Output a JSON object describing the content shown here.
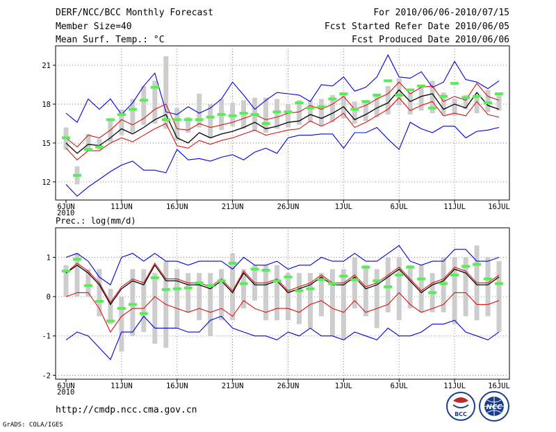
{
  "header": {
    "title": "DERF/NCC/BCC Monthly Forecast",
    "member_size": "Member Size=40",
    "variable": "Mean Surf. Temp.: °C",
    "forecast_range": "For 2010/06/06-2010/07/15",
    "started_refer": "Fcst Started Refer Date 2010/06/05",
    "produced": "Fcst Produced Date 2010/06/06"
  },
  "x_axis": {
    "year": "2010",
    "ticks": [
      {
        "index": 0,
        "label": "6JUN"
      },
      {
        "index": 5,
        "label": "11JUN"
      },
      {
        "index": 10,
        "label": "16JUN"
      },
      {
        "index": 15,
        "label": "21JUN"
      },
      {
        "index": 20,
        "label": "26JUN"
      },
      {
        "index": 25,
        "label": "1JUL"
      },
      {
        "index": 30,
        "label": "6JUL"
      },
      {
        "index": 35,
        "label": "11JUL"
      },
      {
        "index": 39,
        "label": "16JUL"
      }
    ]
  },
  "footer": {
    "url": "http://cmdp.ncc.cma.gov.cn",
    "credit": "GrADS: COLA/IGES",
    "logo_bcc": "BCC",
    "logo_ncc": "NCC"
  },
  "colors": {
    "box": "#cdcdcd",
    "mean": "#000000",
    "sd": "#dd1111",
    "extreme": "#0000dd",
    "obs": "#55ee55"
  },
  "chart_data": [
    {
      "type": "box-ensemble",
      "title": "Mean Surf. Temp.: °C",
      "ylim": [
        10.6,
        22.5
      ],
      "yticks": [
        12,
        15,
        18,
        21
      ],
      "n_days": 39,
      "box_low": [
        14.5,
        11.8,
        14.4,
        14.5,
        15.1,
        15.6,
        15.8,
        16.4,
        16.5,
        16.1,
        15.2,
        15.8,
        16.2,
        15.4,
        16.0,
        16.3,
        16.1,
        15.9,
        15.8,
        16.1,
        16.2,
        16.4,
        16.6,
        16.3,
        16.6,
        16.9,
        16.5,
        16.7,
        17.0,
        17.2,
        17.9,
        17.2,
        17.5,
        17.3,
        17.2,
        17.1,
        17.6,
        17.3,
        17.4,
        17.5
      ],
      "box_high": [
        16.2,
        13.2,
        15.7,
        15.3,
        16.8,
        17.6,
        18.4,
        19.4,
        19.8,
        21.7,
        17.7,
        17.0,
        18.8,
        18.0,
        18.4,
        18.1,
        18.3,
        18.5,
        18.5,
        18.4,
        18.0,
        18.3,
        18.3,
        18.4,
        18.7,
        18.8,
        18.2,
        18.3,
        18.6,
        19.4,
        20.0,
        18.9,
        19.5,
        19.8,
        18.9,
        18.4,
        18.7,
        18.6,
        19.1,
        18.7
      ],
      "mean": [
        15.0,
        14.2,
        14.9,
        14.8,
        15.4,
        16.1,
        15.7,
        16.2,
        16.8,
        17.2,
        15.4,
        15.0,
        15.8,
        15.4,
        15.7,
        15.9,
        16.2,
        16.6,
        16.1,
        16.3,
        16.6,
        16.7,
        17.2,
        16.9,
        17.3,
        17.8,
        16.8,
        17.2,
        17.7,
        18.1,
        19.1,
        18.2,
        18.6,
        18.8,
        17.6,
        18.0,
        17.7,
        18.9,
        17.9,
        17.6
      ],
      "sd_high": [
        15.4,
        14.7,
        15.6,
        15.4,
        16.0,
        16.8,
        16.4,
        16.9,
        17.6,
        18.0,
        16.1,
        16.0,
        16.5,
        16.2,
        16.4,
        16.6,
        16.9,
        17.2,
        16.8,
        17.0,
        17.3,
        17.4,
        17.9,
        17.6,
        18.0,
        18.6,
        17.6,
        17.9,
        18.4,
        18.8,
        19.7,
        18.8,
        19.3,
        19.4,
        18.2,
        18.6,
        18.3,
        19.6,
        18.6,
        18.3
      ],
      "sd_low": [
        14.6,
        13.7,
        14.4,
        14.4,
        15.0,
        15.4,
        15.1,
        15.6,
        16.1,
        16.5,
        14.8,
        14.6,
        15.2,
        14.9,
        15.2,
        15.4,
        15.7,
        16.0,
        15.6,
        15.8,
        16.0,
        16.1,
        16.7,
        16.3,
        16.7,
        17.3,
        16.2,
        16.6,
        17.1,
        17.6,
        18.5,
        17.5,
        17.9,
        18.2,
        17.1,
        17.3,
        17.1,
        18.2,
        17.2,
        17.0
      ],
      "max": [
        17.3,
        16.6,
        18.4,
        17.6,
        18.4,
        17.2,
        18.1,
        19.4,
        20.4,
        17.4,
        17.2,
        17.8,
        17.3,
        17.7,
        18.4,
        19.7,
        18.7,
        17.6,
        18.3,
        18.9,
        18.8,
        18.7,
        18.2,
        19.5,
        19.4,
        20.1,
        19.0,
        19.3,
        20.1,
        21.8,
        20.1,
        20.0,
        20.5,
        19.3,
        19.7,
        21.3,
        19.9,
        19.7,
        19.2,
        19.8
      ],
      "min": [
        11.8,
        10.9,
        11.6,
        12.2,
        12.8,
        13.3,
        13.6,
        12.9,
        12.9,
        12.7,
        14.5,
        13.7,
        13.8,
        13.6,
        13.9,
        14.1,
        13.7,
        14.3,
        14.6,
        14.2,
        15.4,
        15.6,
        15.6,
        15.7,
        15.7,
        14.6,
        15.8,
        15.8,
        16.2,
        15.3,
        14.5,
        16.6,
        16.1,
        15.8,
        16.3,
        16.3,
        15.4,
        15.9,
        16.0,
        16.2
      ],
      "obs": [
        15.4,
        12.5,
        14.5,
        14.7,
        16.8,
        17.2,
        17.6,
        18.3,
        19.3,
        16.8,
        16.8,
        16.8,
        16.8,
        17.0,
        17.2,
        17.1,
        17.3,
        17.2,
        16.5,
        17.4,
        17.4,
        18.1,
        17.7,
        17.8,
        18.4,
        18.8,
        17.6,
        18.2,
        18.7,
        19.8,
        18.7,
        19.1,
        19.4,
        17.7,
        18.6,
        19.6,
        18.5,
        18.6,
        18.1,
        18.8
      ]
    },
    {
      "type": "box-ensemble",
      "title": "Prec.: log(mm/d)",
      "ylim": [
        -2.1,
        1.75
      ],
      "yticks": [
        -2,
        -1,
        0,
        1
      ],
      "n_days": 39,
      "box_low": [
        0.0,
        0.0,
        0.0,
        -0.5,
        -0.7,
        -1.4,
        -1.0,
        -0.9,
        -1.2,
        -1.3,
        -0.8,
        -0.4,
        -0.6,
        -1.0,
        -0.6,
        -0.6,
        -0.3,
        -0.1,
        -0.6,
        -0.6,
        -0.6,
        -0.7,
        -0.8,
        -0.5,
        -1.0,
        -1.1,
        -0.3,
        -0.5,
        -0.8,
        -0.4,
        -0.6,
        -0.3,
        -0.4,
        -0.4,
        -0.4,
        -0.7,
        -0.5,
        -0.6,
        -0.5,
        -0.9
      ],
      "box_high": [
        0.8,
        1.1,
        0.7,
        0.7,
        0.2,
        0.0,
        0.7,
        0.7,
        0.6,
        0.9,
        0.7,
        0.6,
        0.6,
        0.6,
        0.7,
        1.1,
        0.7,
        0.8,
        0.8,
        0.8,
        0.6,
        0.6,
        0.6,
        0.6,
        0.7,
        0.7,
        1.0,
        0.8,
        0.7,
        1.0,
        1.0,
        0.8,
        0.8,
        0.6,
        1.0,
        1.0,
        1.0,
        1.3,
        1.0,
        0.9
      ],
      "mean": [
        0.6,
        0.8,
        0.6,
        0.3,
        -0.2,
        0.2,
        0.4,
        0.3,
        0.8,
        0.4,
        0.4,
        0.3,
        0.3,
        0.2,
        0.4,
        0.1,
        0.6,
        0.3,
        0.3,
        0.4,
        0.1,
        0.2,
        0.3,
        0.5,
        0.3,
        0.3,
        0.5,
        0.2,
        0.3,
        0.5,
        0.7,
        0.4,
        0.1,
        0.3,
        0.4,
        0.7,
        0.6,
        0.3,
        0.3,
        0.5
      ],
      "sd_high": [
        0.6,
        0.85,
        0.65,
        0.35,
        -0.15,
        0.25,
        0.45,
        0.35,
        0.85,
        0.45,
        0.45,
        0.35,
        0.35,
        0.25,
        0.45,
        0.15,
        0.65,
        0.35,
        0.35,
        0.45,
        0.15,
        0.25,
        0.35,
        0.55,
        0.35,
        0.35,
        0.55,
        0.25,
        0.35,
        0.55,
        0.75,
        0.45,
        0.15,
        0.35,
        0.45,
        0.75,
        0.65,
        0.35,
        0.35,
        0.55
      ],
      "sd_low": [
        0.0,
        0.1,
        0.1,
        -0.3,
        -0.9,
        -0.5,
        -0.3,
        -0.3,
        0.0,
        -0.2,
        -0.3,
        -0.4,
        -0.3,
        -0.4,
        -0.3,
        -0.5,
        -0.1,
        -0.3,
        -0.4,
        -0.3,
        -0.3,
        -0.4,
        -0.2,
        -0.1,
        -0.3,
        -0.4,
        -0.1,
        -0.4,
        -0.3,
        -0.2,
        0.1,
        -0.2,
        -0.4,
        -0.3,
        -0.2,
        0.1,
        0.1,
        -0.2,
        -0.2,
        -0.1
      ],
      "max": [
        1.0,
        1.1,
        0.9,
        0.5,
        0.3,
        1.0,
        1.1,
        0.9,
        1.1,
        0.9,
        0.9,
        0.8,
        0.9,
        0.9,
        0.9,
        0.7,
        1.0,
        0.8,
        0.8,
        0.9,
        0.7,
        0.8,
        0.8,
        1.0,
        0.9,
        0.9,
        1.1,
        0.9,
        0.9,
        1.1,
        1.3,
        0.9,
        0.8,
        0.9,
        0.9,
        1.2,
        1.2,
        0.9,
        0.9,
        1.0
      ],
      "min": [
        -1.1,
        -0.9,
        -1.0,
        -1.3,
        -1.6,
        -0.9,
        -0.9,
        -0.5,
        -0.8,
        -0.8,
        -0.8,
        -0.9,
        -0.9,
        -0.6,
        -0.5,
        -0.8,
        -0.9,
        -1.0,
        -1.0,
        -1.1,
        -0.9,
        -1.0,
        -0.8,
        -1.0,
        -1.0,
        -1.1,
        -0.9,
        -1.0,
        -1.1,
        -0.8,
        -1.0,
        -1.0,
        -0.9,
        -0.7,
        -0.7,
        -0.6,
        -0.9,
        -1.0,
        -1.1,
        -0.9
      ],
      "obs": [
        0.65,
        0.95,
        0.28,
        -0.12,
        -0.62,
        -0.3,
        -0.2,
        -0.43,
        0.48,
        0.18,
        0.2,
        0.22,
        0.35,
        0.28,
        0.4,
        0.85,
        0.33,
        0.7,
        0.67,
        0.4,
        0.5,
        0.15,
        0.2,
        0.43,
        0.33,
        0.52,
        0.43,
        0.75,
        0.4,
        0.25,
        0.55,
        0.75,
        0.45,
        0.1,
        0.33,
        0.55,
        0.77,
        0.82,
        0.45,
        0.33
      ]
    }
  ]
}
